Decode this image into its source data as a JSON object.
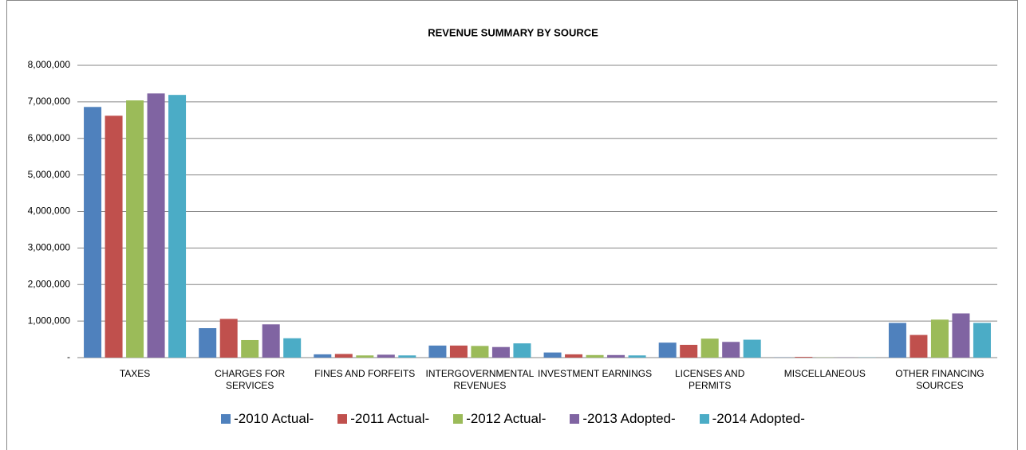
{
  "chart_data": {
    "type": "bar",
    "title": "REVENUE SUMMARY BY SOURCE",
    "categories": [
      "TAXES",
      "CHARGES FOR SERVICES",
      "FINES AND FORFEITS",
      "INTERGOVERNMENTAL REVENUES",
      "INVESTMENT EARNINGS",
      "LICENSES AND PERMITS",
      "MISCELLANEOUS",
      "OTHER FINANCING SOURCES"
    ],
    "series": [
      {
        "name": "-2010 Actual-",
        "color": "#4f81bd",
        "values": [
          6860000,
          806000,
          90000,
          330000,
          140000,
          410000,
          5000,
          950000
        ]
      },
      {
        "name": "-2011 Actual-",
        "color": "#c0504d",
        "values": [
          6620000,
          1060000,
          100000,
          330000,
          90000,
          350000,
          20000,
          620000
        ]
      },
      {
        "name": "-2012 Actual-",
        "color": "#9bbb59",
        "values": [
          7040000,
          480000,
          60000,
          320000,
          70000,
          520000,
          5000,
          1040000
        ]
      },
      {
        "name": "-2013 Adopted-",
        "color": "#8064a2",
        "values": [
          7230000,
          910000,
          80000,
          290000,
          70000,
          430000,
          5000,
          1210000
        ]
      },
      {
        "name": "-2014 Adopted-",
        "color": "#4bacc6",
        "values": [
          7190000,
          530000,
          60000,
          390000,
          60000,
          490000,
          5000,
          950000
        ]
      }
    ],
    "ylim": [
      0,
      8000000
    ],
    "yticks": [
      {
        "value": 0,
        "label": "-"
      },
      {
        "value": 1000000,
        "label": "1,000,000"
      },
      {
        "value": 2000000,
        "label": "2,000,000"
      },
      {
        "value": 3000000,
        "label": "3,000,000"
      },
      {
        "value": 4000000,
        "label": "4,000,000"
      },
      {
        "value": 5000000,
        "label": "5,000,000"
      },
      {
        "value": 6000000,
        "label": "6,000,000"
      },
      {
        "value": 7000000,
        "label": "7,000,000"
      },
      {
        "value": 8000000,
        "label": "8,000,000"
      }
    ],
    "grid": true,
    "legend": "bottom"
  }
}
